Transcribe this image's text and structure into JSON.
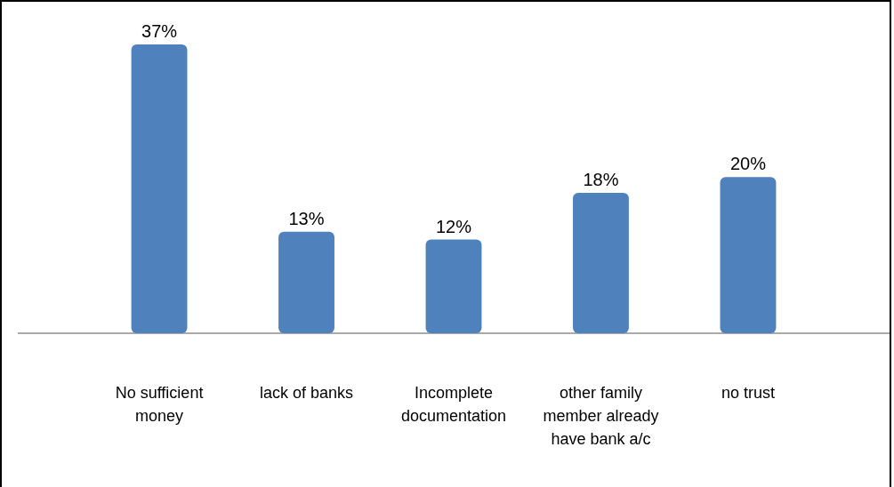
{
  "chart_data": {
    "type": "bar",
    "categories": [
      "No  sufficient money",
      "lack of banks",
      "Incomplete documentation",
      "other family member already have bank a/c",
      "no trust"
    ],
    "values": [
      37,
      13,
      12,
      18,
      20
    ],
    "color": "#4f81bd",
    "data_labels": true,
    "value_labels": [
      "37%",
      "13%",
      "12%",
      "18%",
      "20%"
    ]
  }
}
